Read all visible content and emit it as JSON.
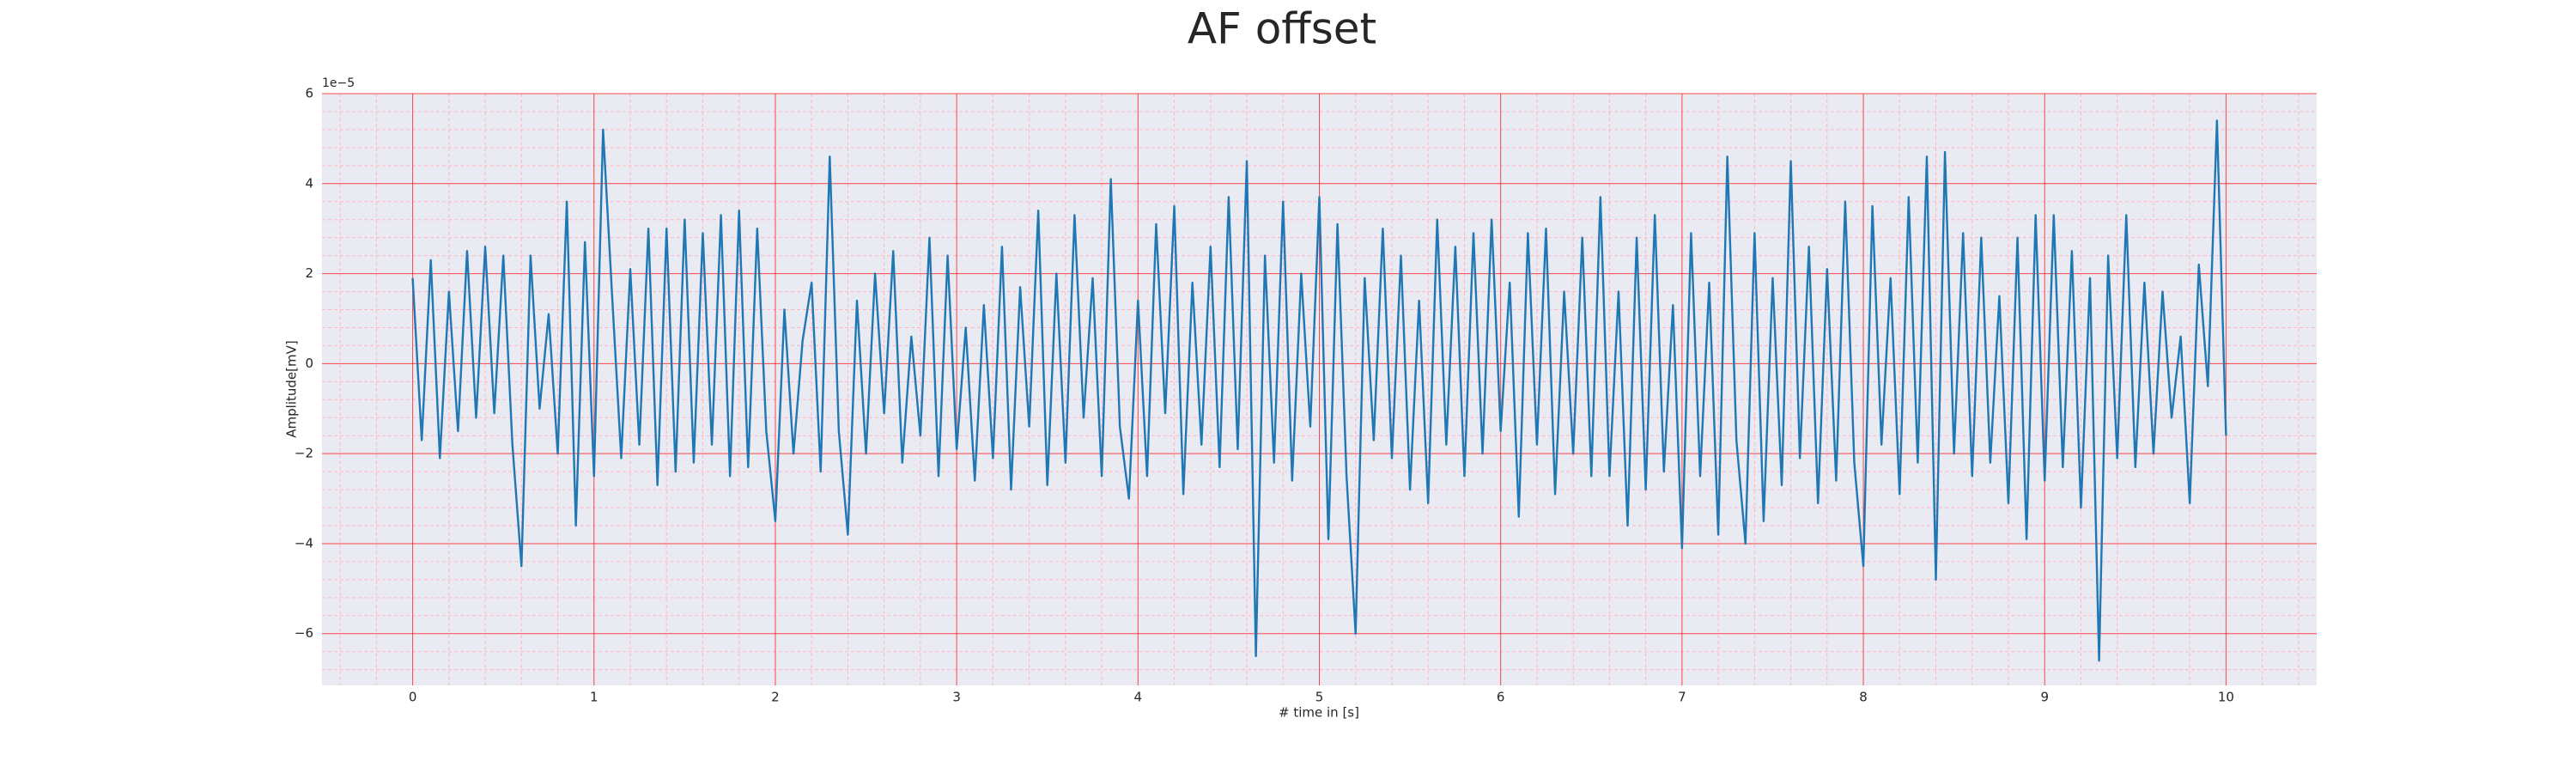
{
  "chart_data": {
    "type": "line",
    "title": "AF offset",
    "x_label": "# time in [s]",
    "y_label": "Amplitude[mV]",
    "y_offset_label": "1e−5",
    "x": [
      0,
      0.05,
      0.1,
      0.15,
      0.2,
      0.25,
      0.3,
      0.35,
      0.4,
      0.45,
      0.5,
      0.55,
      0.6,
      0.65,
      0.7,
      0.75,
      0.8,
      0.85,
      0.9,
      0.95,
      1,
      1.05,
      1.1,
      1.15,
      1.2,
      1.25,
      1.3,
      1.35,
      1.4,
      1.45,
      1.5,
      1.55,
      1.6,
      1.65,
      1.7,
      1.75,
      1.8,
      1.85,
      1.9,
      1.95,
      2,
      2.05,
      2.1,
      2.15,
      2.2,
      2.25,
      2.3,
      2.35,
      2.4,
      2.45,
      2.5,
      2.55,
      2.6,
      2.65,
      2.7,
      2.75,
      2.8,
      2.85,
      2.9,
      2.95,
      3,
      3.05,
      3.1,
      3.15,
      3.2,
      3.25,
      3.3,
      3.35,
      3.4,
      3.45,
      3.5,
      3.55,
      3.6,
      3.65,
      3.7,
      3.75,
      3.8,
      3.85,
      3.9,
      3.95,
      4,
      4.05,
      4.1,
      4.15,
      4.2,
      4.25,
      4.3,
      4.35,
      4.4,
      4.45,
      4.5,
      4.55,
      4.6,
      4.65,
      4.7,
      4.75,
      4.8,
      4.85,
      4.9,
      4.95,
      5,
      5.05,
      5.1,
      5.15,
      5.2,
      5.25,
      5.3,
      5.35,
      5.4,
      5.45,
      5.5,
      5.55,
      5.6,
      5.65,
      5.7,
      5.75,
      5.8,
      5.85,
      5.9,
      5.95,
      6,
      6.05,
      6.1,
      6.15,
      6.2,
      6.25,
      6.3,
      6.35,
      6.4,
      6.45,
      6.5,
      6.55,
      6.6,
      6.65,
      6.7,
      6.75,
      6.8,
      6.85,
      6.9,
      6.95,
      7,
      7.05,
      7.1,
      7.15,
      7.2,
      7.25,
      7.3,
      7.35,
      7.4,
      7.45,
      7.5,
      7.55,
      7.6,
      7.65,
      7.7,
      7.75,
      7.8,
      7.85,
      7.9,
      7.95,
      8,
      8.05,
      8.1,
      8.15,
      8.2,
      8.25,
      8.3,
      8.35,
      8.4,
      8.45,
      8.5,
      8.55,
      8.6,
      8.65,
      8.7,
      8.75,
      8.8,
      8.85,
      8.9,
      8.95,
      9,
      9.05,
      9.1,
      9.15,
      9.2,
      9.25,
      9.3,
      9.35,
      9.4,
      9.45,
      9.5,
      9.55,
      9.6,
      9.65,
      9.7,
      9.75,
      9.8,
      9.85,
      9.9,
      9.95,
      10
    ],
    "series": [
      {
        "color": "#1f77b4",
        "values": [
          1.9,
          -1.7,
          2.3,
          -2.1,
          1.6,
          -1.5,
          2.5,
          -1.2,
          2.6,
          -1.1,
          2.4,
          -1.8,
          -4.5,
          2.4,
          -1.0,
          1.1,
          -2.0,
          3.6,
          -3.6,
          2.7,
          -2.5,
          5.2,
          1.5,
          -2.1,
          2.1,
          -1.8,
          3.0,
          -2.7,
          3.0,
          -2.4,
          3.2,
          -2.2,
          2.9,
          -1.8,
          3.3,
          -2.5,
          3.4,
          -2.3,
          3.0,
          -1.5,
          -3.5,
          1.2,
          -2.0,
          0.5,
          1.8,
          -2.4,
          4.6,
          -1.5,
          -3.8,
          1.4,
          -2.0,
          2.0,
          -1.1,
          2.5,
          -2.2,
          0.6,
          -1.6,
          2.8,
          -2.5,
          2.4,
          -1.9,
          0.8,
          -2.6,
          1.3,
          -2.1,
          2.6,
          -2.8,
          1.7,
          -1.4,
          3.4,
          -2.7,
          2.0,
          -2.2,
          3.3,
          -1.2,
          1.9,
          -2.5,
          4.1,
          -1.4,
          -3.0,
          1.4,
          -2.5,
          3.1,
          -1.1,
          3.5,
          -2.9,
          1.8,
          -1.8,
          2.6,
          -2.3,
          3.7,
          -1.9,
          4.5,
          -6.5,
          2.4,
          -2.2,
          3.6,
          -2.6,
          2.0,
          -1.4,
          3.7,
          -3.9,
          3.1,
          -2.5,
          -6.0,
          1.9,
          -1.7,
          3.0,
          -2.1,
          2.4,
          -2.8,
          1.4,
          -3.1,
          3.2,
          -1.8,
          2.6,
          -2.5,
          2.9,
          -2.0,
          3.2,
          -1.5,
          1.8,
          -3.4,
          2.9,
          -1.8,
          3.0,
          -2.9,
          1.6,
          -2.0,
          2.8,
          -2.5,
          3.7,
          -2.5,
          1.6,
          -3.6,
          2.8,
          -2.8,
          3.3,
          -2.4,
          1.3,
          -4.1,
          2.9,
          -2.5,
          1.8,
          -3.8,
          4.6,
          -1.7,
          -4.0,
          2.9,
          -3.5,
          1.9,
          -2.7,
          4.5,
          -2.1,
          2.6,
          -3.1,
          2.1,
          -2.6,
          3.6,
          -2.2,
          -4.5,
          3.5,
          -1.8,
          1.9,
          -2.9,
          3.7,
          -2.2,
          4.6,
          -4.8,
          4.7,
          -2.0,
          2.9,
          -2.5,
          2.8,
          -2.2,
          1.5,
          -3.1,
          2.8,
          -3.9,
          3.3,
          -2.6,
          3.3,
          -2.3,
          2.5,
          -3.2,
          1.9,
          -6.6,
          2.4,
          -2.1,
          3.3,
          -2.3,
          1.8,
          -2.0,
          1.6,
          -1.2,
          0.6,
          -3.1,
          2.2,
          -0.5,
          5.4,
          -1.6
        ]
      }
    ],
    "xlim": [
      -0.5,
      10.5
    ],
    "ylim": [
      -7.15,
      6
    ],
    "xticks": [
      0,
      1,
      2,
      3,
      4,
      5,
      6,
      7,
      8,
      9,
      10
    ],
    "yticks": [
      {
        "value": -6,
        "label": "−6"
      },
      {
        "value": -4,
        "label": "−4"
      },
      {
        "value": -2,
        "label": "−2"
      },
      0,
      2,
      4,
      6
    ],
    "xminorticks": [
      -0.4,
      -0.2,
      0.2,
      0.4,
      0.6,
      0.8,
      1.2,
      1.4,
      1.6,
      1.8,
      2.2,
      2.4,
      2.6,
      2.8,
      3.2,
      3.4,
      3.6,
      3.8,
      4.2,
      4.4,
      4.6,
      4.8,
      5.2,
      5.4,
      5.6,
      5.8,
      6.2,
      6.4,
      6.6,
      6.8,
      7.2,
      7.4,
      7.6,
      7.8,
      8.2,
      8.4,
      8.6,
      8.8,
      9.2,
      9.4,
      9.6,
      9.8,
      10.2,
      10.4
    ],
    "yminorticks": [
      -6.8,
      -6.4,
      -5.6,
      -5.2,
      -4.8,
      -4.4,
      -3.6,
      -3.2,
      -2.8,
      -2.4,
      -1.6,
      -1.2,
      -0.8,
      -0.4,
      0.4,
      0.8,
      1.2,
      1.6,
      2.4,
      2.8,
      3.2,
      3.6,
      4.4,
      4.8,
      5.2,
      5.6
    ],
    "grid": true,
    "minor_grid": true,
    "grid_color": "#ff0000",
    "minor_grid_color": "#ffb6c1",
    "background": "#eaeaf2"
  }
}
